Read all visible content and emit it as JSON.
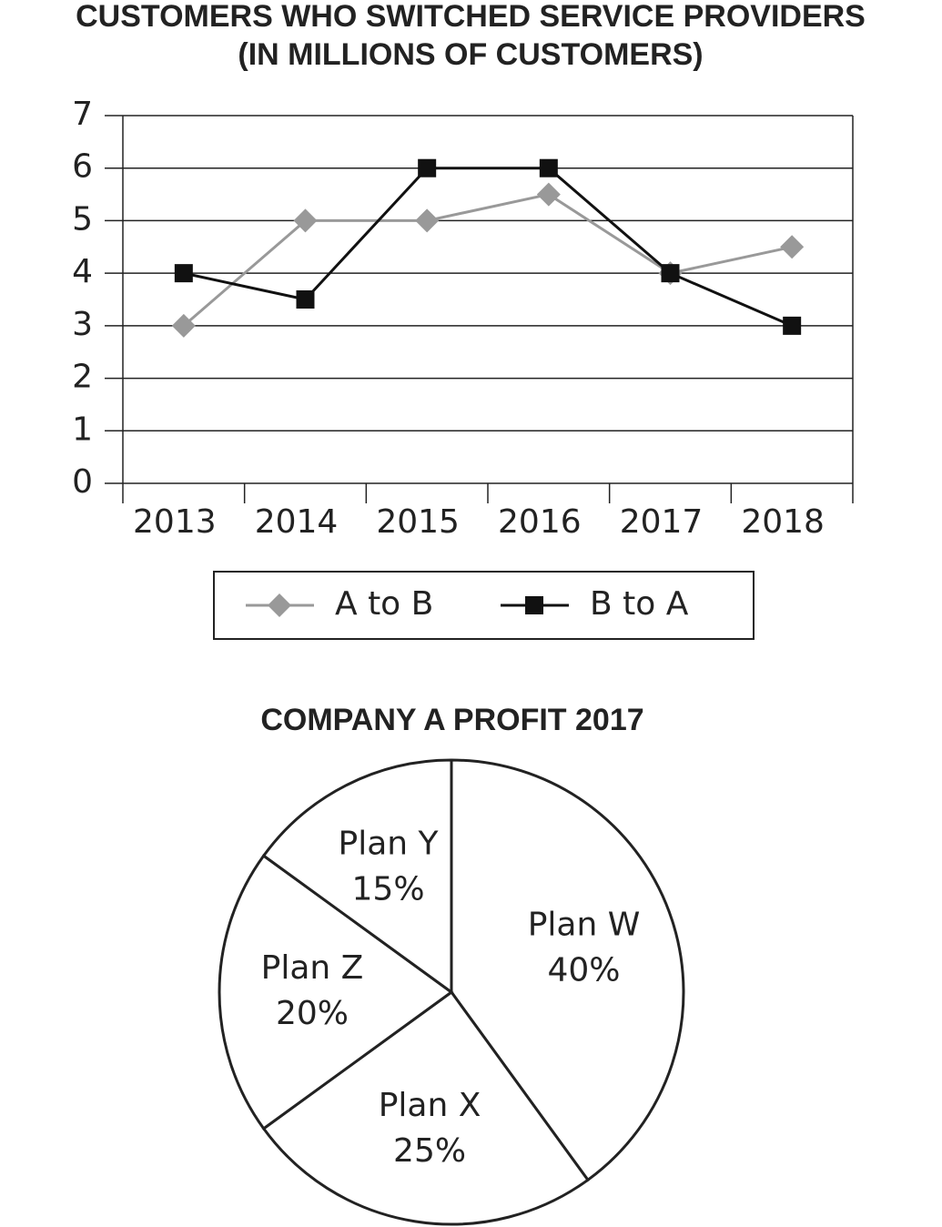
{
  "chart_data": [
    {
      "type": "line",
      "title": "CUSTOMERS WHO SWITCHED SERVICE PROVIDERS",
      "subtitle": "(IN MILLIONS OF CUSTOMERS)",
      "categories": [
        "2013",
        "2014",
        "2015",
        "2016",
        "2017",
        "2018"
      ],
      "series": [
        {
          "name": "A to B",
          "color": "#999999",
          "marker": "diamond",
          "values": [
            3,
            5,
            5,
            5.5,
            4,
            4.5
          ]
        },
        {
          "name": "B to A",
          "color": "#111111",
          "marker": "square",
          "values": [
            4,
            3.5,
            6,
            6,
            4,
            3
          ]
        }
      ],
      "ylim": [
        0,
        7
      ],
      "yticks": [
        0,
        1,
        2,
        3,
        4,
        5,
        6,
        7
      ],
      "grid": true,
      "legend": "bottom"
    },
    {
      "type": "pie",
      "title": "COMPANY A PROFIT 2017",
      "categories": [
        "Plan W",
        "Plan X",
        "Plan Z",
        "Plan Y"
      ],
      "values": [
        40,
        25,
        20,
        15
      ],
      "value_labels": [
        "40%",
        "25%",
        "20%",
        "15%"
      ]
    }
  ]
}
